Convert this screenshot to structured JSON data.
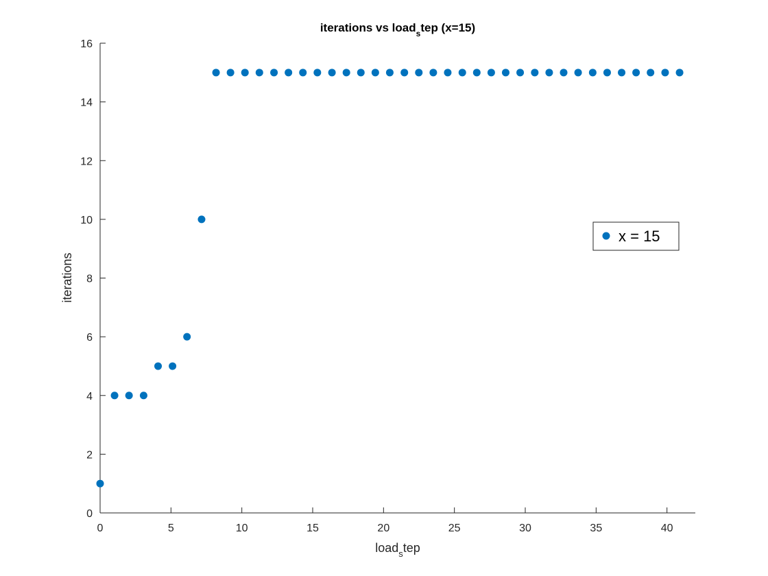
{
  "chart_data": {
    "type": "scatter",
    "title_parts": {
      "before": "iterations vs load",
      "sub": "s",
      "after": "tep (x=15)"
    },
    "xlabel_parts": {
      "before": "load",
      "sub": "s",
      "after": "tep"
    },
    "ylabel": "iterations",
    "xlim": [
      0,
      42
    ],
    "ylim": [
      0,
      16
    ],
    "xticks": [
      0,
      5,
      10,
      15,
      20,
      25,
      30,
      35,
      40
    ],
    "yticks": [
      0,
      2,
      4,
      6,
      8,
      10,
      12,
      14,
      16
    ],
    "grid": false,
    "legend_position": "right",
    "marker_color": "#0072BD",
    "series": [
      {
        "name": "x = 15",
        "x": [
          0,
          1.02,
          2.04,
          3.07,
          4.09,
          5.11,
          6.13,
          7.16,
          8.18,
          9.2,
          10.22,
          11.24,
          12.27,
          13.29,
          14.31,
          15.33,
          16.36,
          17.38,
          18.4,
          19.42,
          20.44,
          21.47,
          22.49,
          23.51,
          24.53,
          25.56,
          26.58,
          27.6,
          28.62,
          29.64,
          30.67,
          31.69,
          32.71,
          33.73,
          34.76,
          35.78,
          36.8,
          37.82,
          38.84,
          39.87,
          40.89
        ],
        "y": [
          1,
          4,
          4,
          4,
          5,
          5,
          6,
          10,
          15,
          15,
          15,
          15,
          15,
          15,
          15,
          15,
          15,
          15,
          15,
          15,
          15,
          15,
          15,
          15,
          15,
          15,
          15,
          15,
          15,
          15,
          15,
          15,
          15,
          15,
          15,
          15,
          15,
          15,
          15,
          15,
          15
        ]
      }
    ]
  }
}
